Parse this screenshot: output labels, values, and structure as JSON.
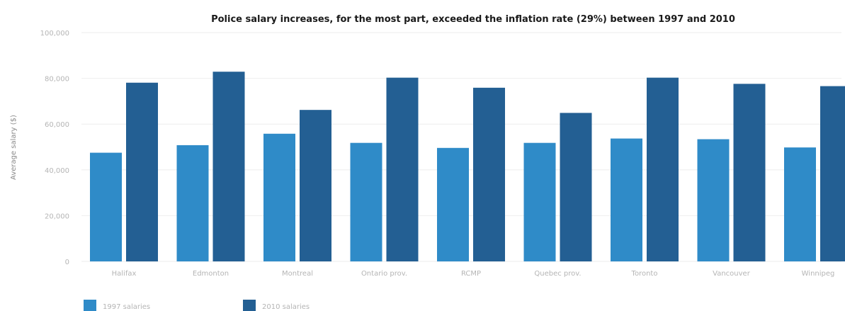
{
  "chart_data": {
    "type": "bar",
    "title": "Police salary increases, for the most part, exceeded the inflation rate (29%) between 1997 and 2010",
    "ylabel": "Average salary ($)",
    "xlabel": "",
    "ylim": [
      0,
      100000
    ],
    "yticks": [
      0,
      20000,
      40000,
      60000,
      80000,
      100000
    ],
    "ytick_labels": [
      "0",
      "20,000",
      "40,000",
      "60,000",
      "80,000",
      "100,000"
    ],
    "categories": [
      "Halifax",
      "Edmonton",
      "Montreal",
      "Ontario prov.",
      "RCMP",
      "Quebec prov.",
      "Toronto",
      "Vancouver",
      "Winnipeg"
    ],
    "series": [
      {
        "name": "1997 salaries",
        "color": "#2f8bc8",
        "values": [
          47500,
          50800,
          55800,
          51800,
          49600,
          51800,
          53700,
          53400,
          49800
        ]
      },
      {
        "name": "2010 salaries",
        "color": "#235f93",
        "values": [
          78100,
          82900,
          66200,
          80300,
          75900,
          64900,
          80300,
          77600,
          76600
        ]
      }
    ],
    "grid": true,
    "legend_position": "bottom-left"
  }
}
